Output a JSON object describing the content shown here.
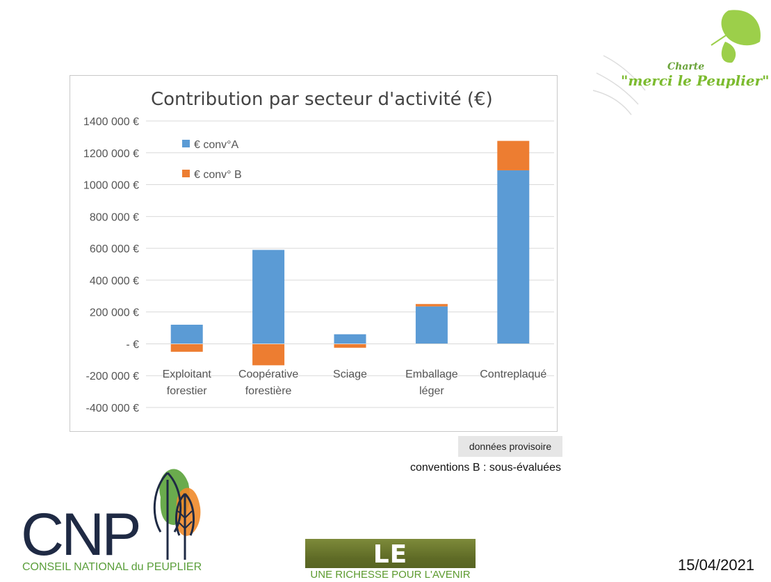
{
  "chart_data": {
    "type": "bar",
    "stacked": true,
    "title": "Contribution par secteur d'activité (€)",
    "categories": [
      [
        "Exploitant",
        "forestier"
      ],
      [
        "Coopérative",
        "forestière"
      ],
      [
        "Sciage"
      ],
      [
        "Emballage",
        "léger"
      ],
      [
        "Contreplaqué"
      ]
    ],
    "series": [
      {
        "name": "€ conv°A",
        "color": "#5b9bd5",
        "values": [
          120000,
          590000,
          60000,
          235000,
          1090000
        ]
      },
      {
        "name": "€ conv° B",
        "color": "#ed7d31",
        "values": [
          -50000,
          -135000,
          -25000,
          15000,
          185000
        ]
      }
    ],
    "ylim": [
      -400000,
      1400000
    ],
    "yticks": [
      1400000,
      1200000,
      1000000,
      800000,
      600000,
      400000,
      200000,
      0,
      -200000,
      -400000
    ],
    "ytick_labels": [
      "1400 000 €",
      "1200 000 €",
      "1000 000 €",
      "800 000 €",
      "600 000 €",
      "400 000 €",
      "200 000 €",
      "-   €",
      "-200 000 €",
      "-400 000 €"
    ],
    "grid": true,
    "legend_position": "top-left"
  },
  "badge": "données provisoire",
  "note": "conventions B : sous-évaluées",
  "date": "15/04/2021",
  "logos": {
    "charte_small": "Charte",
    "charte_big": "\"merci le Peuplier\"",
    "cnp_text": "CONSEIL NATIONAL du PEUPLIER",
    "banner_title": "LE PEUPLIER",
    "banner_subtitle": "UNE RICHESSE POUR L'AVENIR"
  }
}
